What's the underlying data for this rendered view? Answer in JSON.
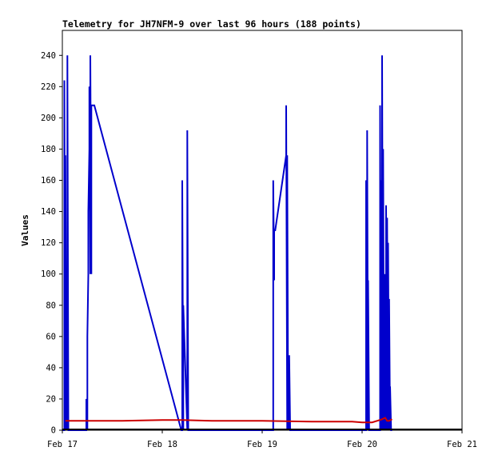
{
  "chart_data": {
    "type": "line",
    "title": "Telemetry for JH7NFM-9 over last 96 hours (188 points)",
    "xlabel": "",
    "ylabel": "Values",
    "xlim": [
      0,
      4
    ],
    "ylim": [
      0,
      256
    ],
    "x_ticks": [
      {
        "value": 0,
        "label": "Feb 17"
      },
      {
        "value": 1,
        "label": "Feb 18"
      },
      {
        "value": 2,
        "label": "Feb 19"
      },
      {
        "value": 3,
        "label": "Feb 20"
      },
      {
        "value": 4,
        "label": "Feb 21"
      }
    ],
    "y_ticks": [
      0,
      20,
      40,
      60,
      80,
      100,
      120,
      140,
      160,
      180,
      200,
      220,
      240
    ],
    "grid": false,
    "legend": "none",
    "series": [
      {
        "color": "#0000cc",
        "x": [
          0.0,
          0.02,
          0.02,
          0.03,
          0.03,
          0.04,
          0.04,
          0.05,
          0.05,
          0.06,
          0.06,
          0.07,
          0.07,
          0.24,
          0.24,
          0.25,
          0.25,
          0.26,
          0.26,
          0.27,
          0.27,
          0.28,
          0.28,
          0.29,
          0.29,
          0.3,
          0.3,
          0.31,
          0.31,
          0.32,
          0.32,
          1.19,
          1.19,
          1.2,
          1.2,
          1.21,
          1.21,
          1.25,
          1.25,
          1.26,
          1.26,
          2.11,
          2.11,
          2.12,
          2.12,
          2.13,
          2.13,
          2.24,
          2.24,
          2.25,
          2.25,
          2.26,
          2.26,
          2.27,
          2.27,
          2.28,
          2.28,
          3.04,
          3.04,
          3.05,
          3.05,
          3.06,
          3.06,
          3.07,
          3.07,
          3.18,
          3.18,
          3.19,
          3.19,
          3.2,
          3.2,
          3.21,
          3.21,
          3.22,
          3.22,
          3.23,
          3.23,
          3.24,
          3.24,
          3.25,
          3.25,
          3.26,
          3.26,
          3.27,
          3.27,
          3.28,
          3.28,
          3.29,
          3.29,
          3.3,
          3.3
        ],
        "y": [
          0,
          0,
          224,
          0,
          176,
          0,
          40,
          0,
          240,
          0,
          0,
          0,
          0,
          0,
          20,
          0,
          60,
          100,
          140,
          180,
          220,
          100,
          240,
          100,
          208,
          208,
          208,
          208,
          208,
          208,
          208,
          0,
          0,
          0,
          160,
          0,
          80,
          0,
          192,
          0,
          0,
          0,
          160,
          96,
          128,
          128,
          128,
          176,
          208,
          0,
          176,
          0,
          24,
          0,
          48,
          0,
          0,
          0,
          160,
          0,
          192,
          0,
          96,
          0,
          0,
          0,
          208,
          0,
          160,
          0,
          240,
          0,
          180,
          0,
          60,
          0,
          100,
          0,
          144,
          0,
          136,
          0,
          120,
          0,
          84,
          0,
          28,
          0,
          0,
          0,
          0
        ]
      },
      {
        "color": "#cc0000",
        "x": [
          0.03,
          0.6,
          1.0,
          1.2,
          1.5,
          2.0,
          2.5,
          2.9,
          3.0,
          3.1,
          3.2,
          3.23,
          3.25,
          3.27,
          3.3
        ],
        "y": [
          6,
          6,
          6.5,
          6.5,
          6,
          6,
          5.5,
          5.5,
          5,
          5,
          7,
          8,
          6,
          6,
          7
        ]
      },
      {
        "color": "#000000",
        "x": [
          0.0,
          4.0
        ],
        "y": [
          0.5,
          0.5
        ]
      }
    ]
  }
}
